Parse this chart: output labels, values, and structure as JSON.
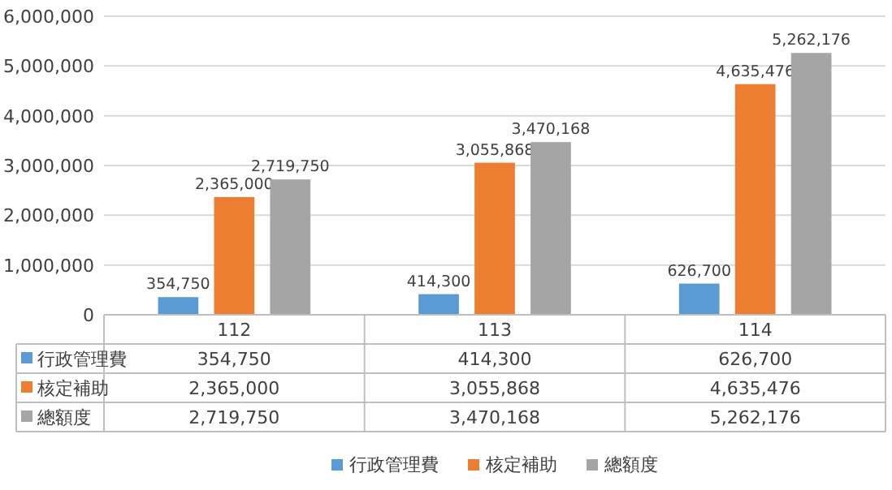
{
  "chart_data": {
    "type": "bar",
    "categories": [
      "112",
      "113",
      "114"
    ],
    "series": [
      {
        "name": "行政管理費",
        "color": "#5b9bd5",
        "values": [
          354750,
          414300,
          626700
        ],
        "value_labels": [
          "354,750",
          "414,300",
          "626,700"
        ]
      },
      {
        "name": "核定補助",
        "color": "#ed7d31",
        "values": [
          2365000,
          3055868,
          4635476
        ],
        "value_labels": [
          "2,365,000",
          "3,055,868",
          "4,635,476"
        ]
      },
      {
        "name": "總額度",
        "color": "#a5a5a5",
        "values": [
          2719750,
          3470168,
          5262176
        ],
        "value_labels": [
          "2,719,750",
          "3,470,168",
          "5,262,176"
        ]
      }
    ],
    "ylim": [
      0,
      6000000
    ],
    "yticks": [
      0,
      {
        "value": 1000000,
        "label": "1,000,000"
      },
      {
        "value": 2000000,
        "label": "2,000,000"
      },
      {
        "value": 3000000,
        "label": "3,000,000"
      },
      {
        "value": 4000000,
        "label": "4,000,000"
      },
      {
        "value": 5000000,
        "label": "5,000,000"
      },
      {
        "value": 6000000,
        "label": "6,000,000"
      }
    ],
    "grid": "y",
    "legend": "bottom"
  }
}
